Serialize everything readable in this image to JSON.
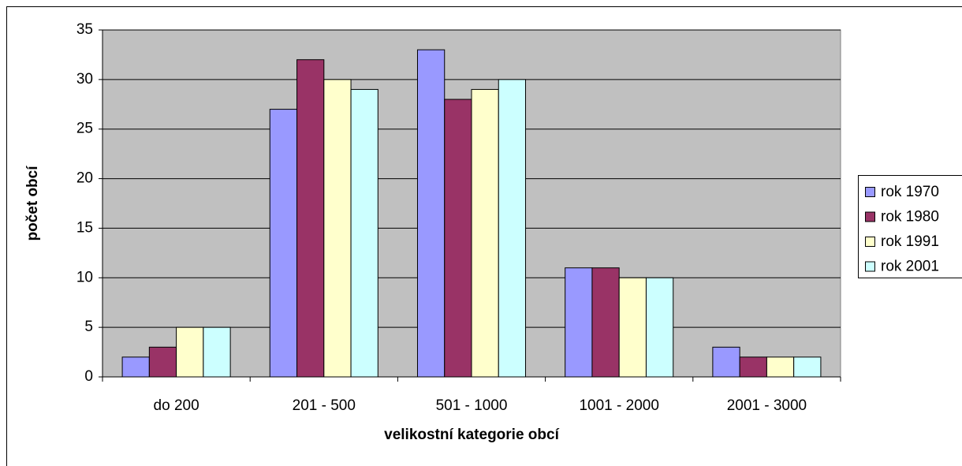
{
  "chart_data": {
    "type": "bar",
    "x_label": "velikostní kategorie obcí",
    "y_label": "počet obcí",
    "categories": [
      "do 200",
      "201 - 500",
      "501 - 1000",
      "1001 - 2000",
      "2001 - 3000"
    ],
    "series": [
      {
        "name": "rok 1970",
        "color": "#9999ff",
        "values": [
          2,
          27,
          33,
          11,
          3
        ]
      },
      {
        "name": "rok 1980",
        "color": "#993366",
        "values": [
          3,
          32,
          28,
          11,
          2
        ]
      },
      {
        "name": "rok 1991",
        "color": "#ffffcc",
        "values": [
          5,
          30,
          29,
          10,
          2
        ]
      },
      {
        "name": "rok 2001",
        "color": "#ccffff",
        "values": [
          5,
          29,
          30,
          10,
          2
        ]
      }
    ],
    "ylim": [
      0,
      35
    ],
    "yticks": [
      0,
      5,
      10,
      15,
      20,
      25,
      30,
      35
    ],
    "grid": true,
    "legend": "right"
  }
}
